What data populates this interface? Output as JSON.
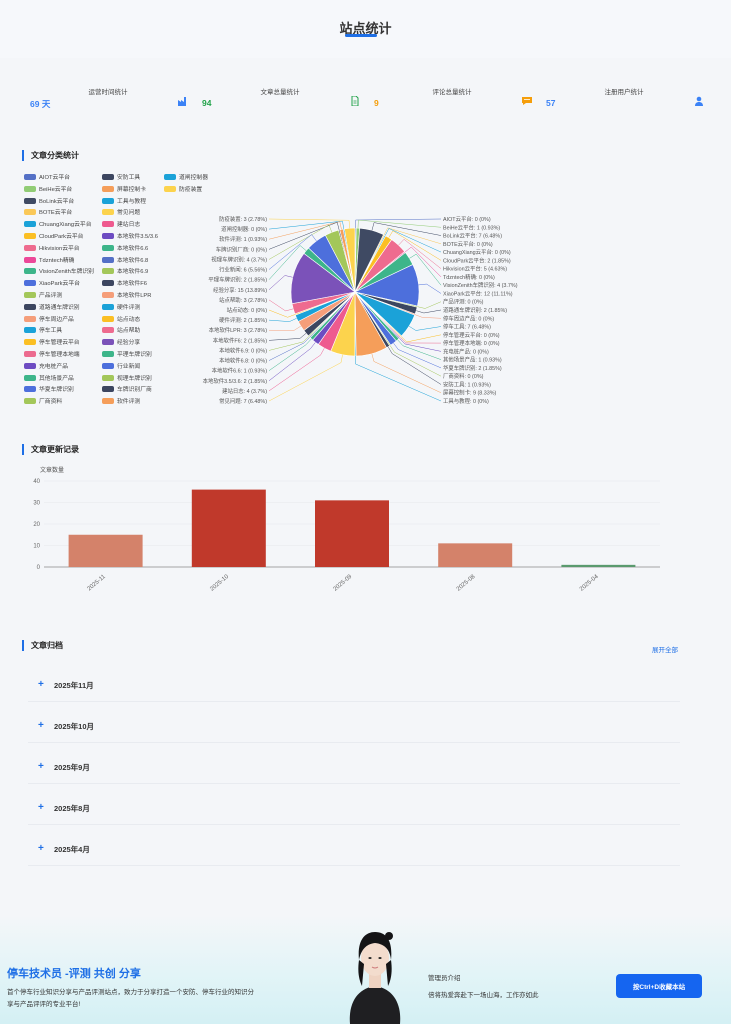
{
  "page": {
    "title": "站点统计"
  },
  "stats": [
    {
      "label": "运营时间统计",
      "value": "69 天",
      "color": "#3b82f6",
      "icon": "factory-icon"
    },
    {
      "label": "文章总量统计",
      "value": "94",
      "color": "#22a34a",
      "icon": "document-icon"
    },
    {
      "label": "评论总量统计",
      "value": "9",
      "color": "#f59e0b",
      "icon": "comment-icon"
    },
    {
      "label": "注册用户统计",
      "value": "57",
      "color": "#3b82f6",
      "icon": "user-icon"
    }
  ],
  "category_section": {
    "title": "文章分类统计"
  },
  "pie_chart": {
    "type": "pie",
    "slices": [
      {
        "name": "AIOT云平台",
        "value": 0,
        "label": "AIOT云平台: 0 (0%)",
        "color": "#5470c6"
      },
      {
        "name": "BeiHe云平台",
        "value": 1,
        "label": "BeiHe云平台: 1 (0.93%)",
        "color": "#91cc75"
      },
      {
        "name": "BoLink云平台",
        "value": 7,
        "label": "BoLink云平台: 7 (6.48%)",
        "color": "#3f4a63"
      },
      {
        "name": "BOTE云平台",
        "value": 0,
        "label": "BOTE云平台: 0 (0%)",
        "color": "#fac858"
      },
      {
        "name": "ChuangXiang云平台",
        "value": 0,
        "label": "ChuangXiang云平台: 0 (0%)",
        "color": "#1ba2d8"
      },
      {
        "name": "CloudPark云平台",
        "value": 2,
        "label": "CloudPark云平台: 2 (1.85%)",
        "color": "#fbbf24"
      },
      {
        "name": "Hikvision云平台",
        "value": 5,
        "label": "Hikvision云平台: 5 (4.63%)",
        "color": "#ee6b8f"
      },
      {
        "name": "Tdzntech精确",
        "value": 0,
        "label": "Tdzntech精确: 0 (0%)",
        "color": "#ec4899"
      },
      {
        "name": "VisionZenith车牌识别",
        "value": 4,
        "label": "VisionZenith车牌识别: 4 (3.7%)",
        "color": "#3db58a"
      },
      {
        "name": "XiaoPark云平台",
        "value": 12,
        "label": "XiaoPark云平台: 12 (11.11%)",
        "color": "#4d6fdc"
      },
      {
        "name": "产品评测",
        "value": 0,
        "label": "产品评测: 0 (0%)",
        "color": "#a3c75a"
      },
      {
        "name": "道路通车牌识别",
        "value": 2,
        "label": "道路通车牌识别: 2 (1.85%)",
        "color": "#3c4660"
      },
      {
        "name": "停车周边产品",
        "value": 0,
        "label": "停车周边产品: 0 (0%)",
        "color": "#f59e7a"
      },
      {
        "name": "停车工具",
        "value": 7,
        "label": "停车工具: 7 (6.48%)",
        "color": "#1ba2d8"
      },
      {
        "name": "停车管理云平台",
        "value": 0,
        "label": "停车管理云平台: 0 (0%)",
        "color": "#fbbf24"
      },
      {
        "name": "停车管理本地端",
        "value": 0,
        "label": "停车管理本地端: 0 (0%)",
        "color": "#ec6b8f"
      },
      {
        "name": "充电桩产品",
        "value": 0,
        "label": "充电桩产品: 0 (0%)",
        "color": "#6d4cc2"
      },
      {
        "name": "其他场景产品",
        "value": 1,
        "label": "其他场景产品: 1 (0.93%)",
        "color": "#3db58a"
      },
      {
        "name": "华夏车牌识别",
        "value": 2,
        "label": "华夏车牌识别: 2 (1.85%)",
        "color": "#4d6fdc"
      },
      {
        "name": "厂商资料",
        "value": 0,
        "label": "厂商资料: 0 (0%)",
        "color": "#a3c75a"
      },
      {
        "name": "安防工具",
        "value": 1,
        "label": "安防工具: 1 (0.93%)",
        "color": "#3c4660"
      },
      {
        "name": "屏幕控制卡",
        "value": 9,
        "label": "屏幕控制卡: 9 (8.33%)",
        "color": "#f59e5a"
      },
      {
        "name": "工具与教程",
        "value": 0,
        "label": "工具与教程: 0 (0%)",
        "color": "#1ba2d8"
      },
      {
        "name": "常见问题",
        "value": 7,
        "label": "常见问题: 7 (6.48%)",
        "color": "#fcd34d"
      },
      {
        "name": "建站日志",
        "value": 4,
        "label": "建站日志: 4 (3.7%)",
        "color": "#ee5a8f"
      },
      {
        "name": "本地软件3.5/3.6",
        "value": 2,
        "label": "本地软件3.5/3.6: 2 (1.85%)",
        "color": "#6d4cc2"
      },
      {
        "name": "本地软件6.6",
        "value": 1,
        "label": "本地软件6.6: 1 (0.93%)",
        "color": "#3db58a"
      },
      {
        "name": "本地软件6.8",
        "value": 0,
        "label": "本地软件6.8: 0 (0%)",
        "color": "#5470c6"
      },
      {
        "name": "本地软件6.9",
        "value": 0,
        "label": "本地软件6.9: 0 (0%)",
        "color": "#a3c75a"
      },
      {
        "name": "本地软件F6",
        "value": 2,
        "label": "本地软件F6: 2 (1.85%)",
        "color": "#3c4660"
      },
      {
        "name": "本地软件LPR",
        "value": 3,
        "label": "本地软件LPR: 3 (2.78%)",
        "color": "#f59e7a"
      },
      {
        "name": "硬件评测",
        "value": 2,
        "label": "硬件评测: 2 (1.85%)",
        "color": "#1ba2d8"
      },
      {
        "name": "站点动态",
        "value": 0,
        "label": "站点动态: 0 (0%)",
        "color": "#fbbf24"
      },
      {
        "name": "站点帮助",
        "value": 3,
        "label": "站点帮助: 3 (2.78%)",
        "color": "#ee6b8f"
      },
      {
        "name": "经验分享",
        "value": 15,
        "label": "经验分享: 15 (13.89%)",
        "color": "#7b52b9"
      },
      {
        "name": "平理车牌识别",
        "value": 2,
        "label": "平理车牌识别: 2 (1.85%)",
        "color": "#3db58a"
      },
      {
        "name": "行业新闻",
        "value": 6,
        "label": "行业新闻: 6 (5.56%)",
        "color": "#4d6fdc"
      },
      {
        "name": "视理车牌识别",
        "value": 4,
        "label": "视理车牌识别: 4 (3.7%)",
        "color": "#a3c75a"
      },
      {
        "name": "车牌识别厂商",
        "value": 0,
        "label": "车牌识别厂商: 0 (0%)",
        "color": "#3c4660"
      },
      {
        "name": "软件评测",
        "value": 1,
        "label": "软件评测: 1 (0.93%)",
        "color": "#f59e5a"
      },
      {
        "name": "道闸控制器",
        "value": 0,
        "label": "道闸控制器: 0 (0%)",
        "color": "#1ba2d8"
      },
      {
        "name": "防疫装置",
        "value": 3,
        "label": "防疫装置: 3 (2.78%)",
        "color": "#fcd34d"
      }
    ],
    "legend_order": [
      "AIOT云平台",
      "安防工具",
      "道闸控制器",
      "BeiHe云平台",
      "屏幕控制卡",
      "防疫装置",
      "BoLink云平台",
      "工具与教程",
      "BOTE云平台",
      "常见问题",
      "ChuangXiang云平台",
      "建站日志",
      "CloudPark云平台",
      "本地软件3.5/3.6",
      "Hikvision云平台",
      "本地软件6.6",
      "Tdzntech精确",
      "本地软件6.8",
      "VisionZenith车牌识别",
      "本地软件6.9",
      "XiaoPark云平台",
      "本地软件F6",
      "产品评测",
      "本地软件LPR",
      "道路通车牌识别",
      "硬件评测",
      "停车周边产品",
      "站点动态",
      "停车工具",
      "站点帮助",
      "停车管理云平台",
      "经验分享",
      "停车管理本地端",
      "平理车牌识别",
      "充电桩产品",
      "行业新闻",
      "其他场景产品",
      "视理车牌识别",
      "华夏车牌识别",
      "车牌识别厂商",
      "厂商资料",
      "软件评测"
    ]
  },
  "updates_section": {
    "title": "文章更新记录"
  },
  "chart_data": {
    "type": "bar",
    "categories": [
      "2025-11",
      "2025-10",
      "2025-09",
      "2025-08",
      "2025-04"
    ],
    "values": [
      15,
      36,
      31,
      11,
      1
    ],
    "colors": [
      "#d4826a",
      "#c0392b",
      "#c0392b",
      "#d4826a",
      "#5a9a6e"
    ],
    "ylabel": "文章数量",
    "ylim": [
      0,
      40
    ],
    "yticks": [
      0,
      10,
      20,
      30,
      40
    ],
    "grid": true
  },
  "archive_section": {
    "title": "文章归档",
    "expand_all": "展开全部",
    "months": [
      "2025年11月",
      "2025年10月",
      "2025年9月",
      "2025年8月",
      "2025年4月"
    ]
  },
  "footer": {
    "brand": "停车技术员 -评测 共创 分享",
    "description": "首个停车行业知识分享与产品评测站点，致力于分享打造一个安防、停车行业的知识分享与产品评评的专业平台!",
    "owner_title": "管理员介绍",
    "owner_motto": "倍将热爱奔赴下一场山海，工作亦如此",
    "bookmark_button": "按Ctrl+D收藏本站"
  }
}
